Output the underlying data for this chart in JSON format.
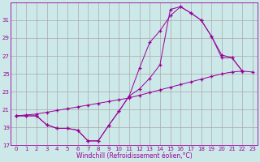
{
  "xlabel": "Windchill (Refroidissement éolien,°C)",
  "bg_color": "#cce8e8",
  "line_color": "#990099",
  "grid_color": "#aaaaaa",
  "xlim": [
    -0.5,
    23.5
  ],
  "ylim": [
    17,
    33
  ],
  "yticks": [
    17,
    19,
    21,
    23,
    25,
    27,
    29,
    31
  ],
  "xticks": [
    0,
    1,
    2,
    3,
    4,
    5,
    6,
    7,
    8,
    9,
    10,
    11,
    12,
    13,
    14,
    15,
    16,
    17,
    18,
    19,
    20,
    21,
    22,
    23
  ],
  "series1_x": [
    0,
    1,
    2,
    3,
    4,
    5,
    6,
    7,
    8,
    9,
    10,
    11,
    12,
    13,
    14,
    15,
    16,
    17,
    18,
    19,
    20,
    21,
    22,
    23
  ],
  "series1_y": [
    20.3,
    20.4,
    20.5,
    20.7,
    20.9,
    21.1,
    21.3,
    21.5,
    21.7,
    21.9,
    22.1,
    22.3,
    22.6,
    22.9,
    23.2,
    23.5,
    23.8,
    24.1,
    24.4,
    24.7,
    25.0,
    25.2,
    25.3,
    25.2
  ],
  "series2_x": [
    0,
    1,
    2,
    3,
    4,
    5,
    6,
    7,
    8,
    9,
    10,
    11,
    12,
    13,
    14,
    15,
    16,
    17,
    18,
    19,
    20,
    21,
    22,
    23
  ],
  "series2_y": [
    20.3,
    20.3,
    20.3,
    19.3,
    18.9,
    18.9,
    18.7,
    17.5,
    17.5,
    19.2,
    20.8,
    22.5,
    23.3,
    24.5,
    26.0,
    32.2,
    32.5,
    31.8,
    31.0,
    29.2,
    27.1,
    26.8,
    25.3,
    null
  ],
  "series3_x": [
    0,
    1,
    2,
    3,
    4,
    5,
    6,
    7,
    8,
    9,
    10,
    11,
    12,
    13,
    14,
    15,
    16,
    17,
    18,
    19,
    20,
    21,
    22,
    23
  ],
  "series3_y": [
    20.3,
    20.3,
    20.3,
    19.3,
    18.9,
    18.9,
    18.7,
    17.5,
    17.5,
    19.2,
    20.8,
    22.5,
    25.6,
    28.5,
    29.8,
    31.5,
    32.5,
    31.8,
    31.0,
    29.2,
    26.8,
    26.8,
    25.3,
    null
  ]
}
